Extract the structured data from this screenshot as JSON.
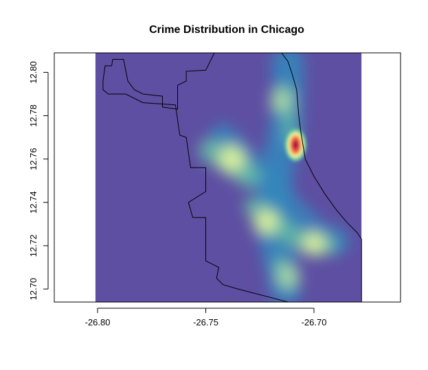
{
  "chart_data": {
    "type": "heatmap",
    "title": "Crime Distribution in Chicago",
    "xlabel": "",
    "ylabel": "",
    "xlim": [
      -26.82,
      -26.66
    ],
    "ylim": [
      12.694,
      12.809
    ],
    "raster_extent": {
      "x": [
        -26.801,
        -26.678
      ],
      "y": [
        12.694,
        12.809
      ]
    },
    "x_ticks": [
      -26.8,
      -26.75,
      -26.7
    ],
    "x_tick_labels": [
      "-26.80",
      "-26.75",
      "-26.70"
    ],
    "y_ticks": [
      12.7,
      12.72,
      12.74,
      12.76,
      12.78,
      12.8
    ],
    "y_tick_labels": [
      "12.70",
      "12.72",
      "12.74",
      "12.76",
      "12.78",
      "12.80"
    ],
    "colors": {
      "background": "#5e4fa2",
      "low": "#3288bd",
      "mid": "#66c2a5",
      "high": "#abdda4",
      "higher": "#e6f598",
      "peak_outer": "#fdae61",
      "peak_mid": "#f46d43",
      "peak": "#d53e4f",
      "peak_core": "#9e0142"
    },
    "hotspots": [
      {
        "x": -26.7085,
        "y": 12.7665,
        "intensity": 1.0
      },
      {
        "x": -26.738,
        "y": 12.76,
        "intensity": 0.6
      },
      {
        "x": -26.722,
        "y": 12.731,
        "intensity": 0.5
      },
      {
        "x": -26.7,
        "y": 12.721,
        "intensity": 0.45
      },
      {
        "x": -26.715,
        "y": 12.787,
        "intensity": 0.35
      },
      {
        "x": -26.712,
        "y": 12.706,
        "intensity": 0.35
      }
    ],
    "outline": [
      [
        -26.7965,
        12.803
      ],
      [
        -26.7935,
        12.803
      ],
      [
        -26.793,
        12.806
      ],
      [
        -26.788,
        12.806
      ],
      [
        -26.786,
        12.796
      ],
      [
        -26.783,
        12.792
      ],
      [
        -26.779,
        12.79
      ],
      [
        -26.77,
        12.789
      ],
      [
        -26.77,
        12.784
      ],
      [
        -26.763,
        12.783
      ],
      [
        -26.763,
        12.794
      ],
      [
        -26.759,
        12.796
      ],
      [
        -26.759,
        12.8005
      ],
      [
        -26.75,
        12.801
      ],
      [
        -26.746,
        12.809
      ],
      [
        -26.715,
        12.809
      ],
      [
        -26.712,
        12.805
      ],
      [
        -26.71,
        12.799
      ],
      [
        -26.708,
        12.792
      ],
      [
        -26.707,
        12.78
      ],
      [
        -26.706,
        12.772
      ],
      [
        -26.705,
        12.766
      ],
      [
        -26.704,
        12.76
      ],
      [
        -26.7,
        12.752
      ],
      [
        -26.695,
        12.744
      ],
      [
        -26.69,
        12.737
      ],
      [
        -26.685,
        12.731
      ],
      [
        -26.68,
        12.726
      ],
      [
        -26.678,
        12.723
      ],
      [
        -26.678,
        12.694
      ],
      [
        -26.712,
        12.694
      ],
      [
        -26.735,
        12.7
      ],
      [
        -26.742,
        12.702
      ],
      [
        -26.745,
        12.705
      ],
      [
        -26.744,
        12.71
      ],
      [
        -26.75,
        12.713
      ],
      [
        -26.75,
        12.733
      ],
      [
        -26.756,
        12.733
      ],
      [
        -26.758,
        12.74
      ],
      [
        -26.75,
        12.745
      ],
      [
        -26.75,
        12.756
      ],
      [
        -26.757,
        12.756
      ],
      [
        -26.759,
        12.77
      ],
      [
        -26.762,
        12.771
      ],
      [
        -26.764,
        12.785
      ],
      [
        -26.779,
        12.786
      ],
      [
        -26.787,
        12.79
      ],
      [
        -26.795,
        12.79
      ],
      [
        -26.7975,
        12.792
      ],
      [
        -26.7975,
        12.796
      ],
      [
        -26.7965,
        12.803
      ]
    ]
  }
}
